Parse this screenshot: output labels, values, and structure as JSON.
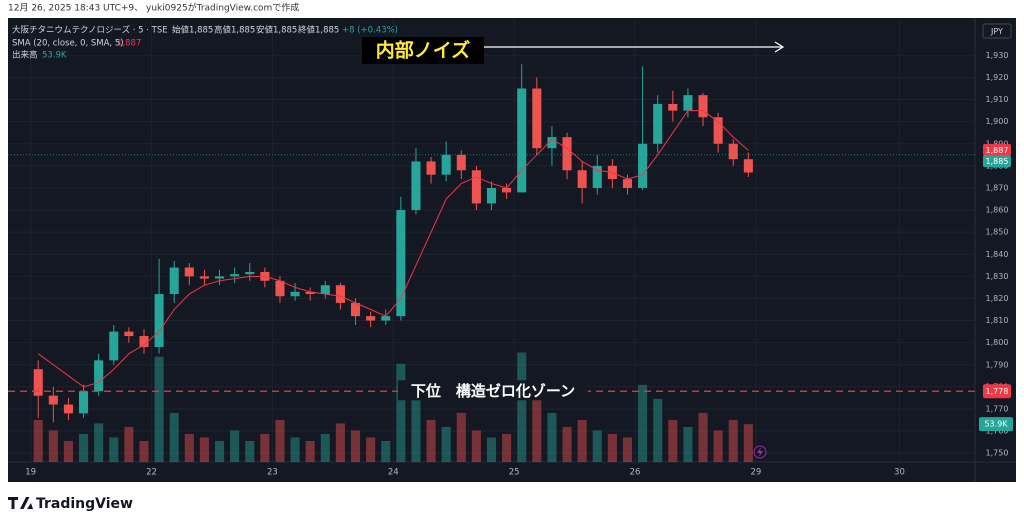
{
  "chart_data": {
    "type": "candlestick",
    "caption": "12月 26, 2025 18:43 UTC+9、 yuki0925がTradingView.comで作成",
    "symbol": "大阪チタニウムテクノロジーズ · 5 · TSE",
    "quote": [
      "始値1,885",
      "高値1,885",
      "安値1,885",
      "終値1,885"
    ],
    "change": "+8 (+0.43%)",
    "currency": "JPY",
    "brand": "TradingView",
    "up_color": "#26a69a",
    "down_color": "#ef5350",
    "open": [
      1788,
      1776,
      1772,
      1768,
      1778,
      1792,
      1805,
      1803,
      1798,
      1822,
      1834,
      1830,
      1829,
      1830,
      1831,
      1832,
      1828,
      1821,
      1823,
      1822,
      1826,
      1818,
      1812,
      1810,
      1812,
      1860,
      1882,
      1876,
      1885,
      1878,
      1863,
      1870,
      1868,
      1915,
      1888,
      1893,
      1878,
      1870,
      1880,
      1874,
      1870,
      1890,
      1908,
      1905,
      1912,
      1902,
      1890,
      1883
    ],
    "high": [
      1792,
      1780,
      1775,
      1781,
      1795,
      1808,
      1807,
      1806,
      1838,
      1837,
      1836,
      1833,
      1833,
      1834,
      1836,
      1834,
      1830,
      1827,
      1825,
      1828,
      1827,
      1820,
      1814,
      1815,
      1866,
      1888,
      1884,
      1891,
      1887,
      1880,
      1873,
      1872,
      1926,
      1920,
      1898,
      1895,
      1882,
      1885,
      1883,
      1876,
      1925,
      1912,
      1914,
      1915,
      1913,
      1904,
      1892,
      1886
    ],
    "low": [
      1766,
      1764,
      1765,
      1766,
      1776,
      1790,
      1800,
      1795,
      1795,
      1818,
      1826,
      1826,
      1826,
      1827,
      1828,
      1825,
      1818,
      1819,
      1819,
      1820,
      1815,
      1808,
      1807,
      1808,
      1810,
      1858,
      1872,
      1873,
      1874,
      1860,
      1860,
      1865,
      1868,
      1885,
      1880,
      1874,
      1863,
      1867,
      1870,
      1867,
      1869,
      1886,
      1900,
      1902,
      1898,
      1886,
      1880,
      1875
    ],
    "close": [
      1776,
      1772,
      1768,
      1778,
      1792,
      1805,
      1803,
      1798,
      1822,
      1834,
      1830,
      1829,
      1830,
      1831,
      1832,
      1828,
      1821,
      1823,
      1822,
      1826,
      1818,
      1812,
      1810,
      1812,
      1860,
      1882,
      1876,
      1885,
      1878,
      1863,
      1870,
      1868,
      1915,
      1888,
      1893,
      1878,
      1870,
      1880,
      1874,
      1870,
      1890,
      1908,
      1905,
      1912,
      1902,
      1890,
      1883,
      1877
    ],
    "sma": {
      "name": "SMA (20, close, 0, SMA, 5)",
      "color": "#f23645",
      "values": [
        1795,
        1790,
        1785,
        1780,
        1782,
        1788,
        1795,
        1799,
        1805,
        1815,
        1822,
        1826,
        1828,
        1829,
        1830,
        1830,
        1828,
        1825,
        1823,
        1822,
        1821,
        1818,
        1815,
        1812,
        1820,
        1835,
        1850,
        1865,
        1872,
        1875,
        1872,
        1870,
        1878,
        1885,
        1892,
        1888,
        1882,
        1878,
        1877,
        1874,
        1876,
        1885,
        1895,
        1905,
        1905,
        1900,
        1893,
        1887
      ],
      "last_label": "1,887"
    },
    "volume": {
      "name": "出来高",
      "values": [
        60000,
        45000,
        30000,
        40000,
        55000,
        35000,
        50000,
        30000,
        150000,
        70000,
        40000,
        35000,
        30000,
        45000,
        30000,
        40000,
        60000,
        35000,
        30000,
        40000,
        55000,
        45000,
        35000,
        30000,
        140000,
        90000,
        60000,
        50000,
        70000,
        45000,
        35000,
        40000,
        156000,
        90000,
        70000,
        50000,
        60000,
        45000,
        40000,
        35000,
        110000,
        90000,
        60000,
        50000,
        70000,
        45000,
        60000,
        53900
      ],
      "last_label": "53.9K",
      "lim": [
        0,
        630000
      ]
    },
    "last_price": {
      "value": 1885,
      "label": "1,885"
    },
    "hline": {
      "value": 1778,
      "label": "1,778",
      "text": "下位　構造ゼロ化ゾーン",
      "color": "#f23645"
    },
    "annotation": "内部ノイズ",
    "ylim": [
      1746,
      1946
    ],
    "yticks": [
      {
        "value": 1750,
        "label": "1,750"
      },
      {
        "value": 1760,
        "label": "1,760"
      },
      {
        "value": 1770,
        "label": "1,770"
      },
      {
        "value": 1780,
        "label": "1,780"
      },
      {
        "value": 1790,
        "label": "1,790"
      },
      {
        "value": 1800,
        "label": "1,800"
      },
      {
        "value": 1810,
        "label": "1,810"
      },
      {
        "value": 1820,
        "label": "1,820"
      },
      {
        "value": 1830,
        "label": "1,830"
      },
      {
        "value": 1840,
        "label": "1,840"
      },
      {
        "value": 1850,
        "label": "1,850"
      },
      {
        "value": 1860,
        "label": "1,860"
      },
      {
        "value": 1870,
        "label": "1,870"
      },
      {
        "value": 1880,
        "label": "1,880"
      },
      {
        "value": 1890,
        "label": "1,890"
      },
      {
        "value": 1900,
        "label": "1,900"
      },
      {
        "value": 1910,
        "label": "1,910"
      },
      {
        "value": 1920,
        "label": "1,920"
      },
      {
        "value": 1930,
        "label": "1,930"
      }
    ],
    "xlim": [
      -1.5,
      62.5
    ],
    "xticks": [
      {
        "value": 0,
        "label": "19"
      },
      {
        "value": 8,
        "label": "22"
      },
      {
        "value": 16,
        "label": "23"
      },
      {
        "value": 24,
        "label": "24"
      },
      {
        "value": 32,
        "label": "25"
      },
      {
        "value": 40,
        "label": "26"
      },
      {
        "value": 48,
        "label": "29"
      },
      {
        "value": 57.5,
        "label": "30"
      }
    ],
    "grid": true
  }
}
